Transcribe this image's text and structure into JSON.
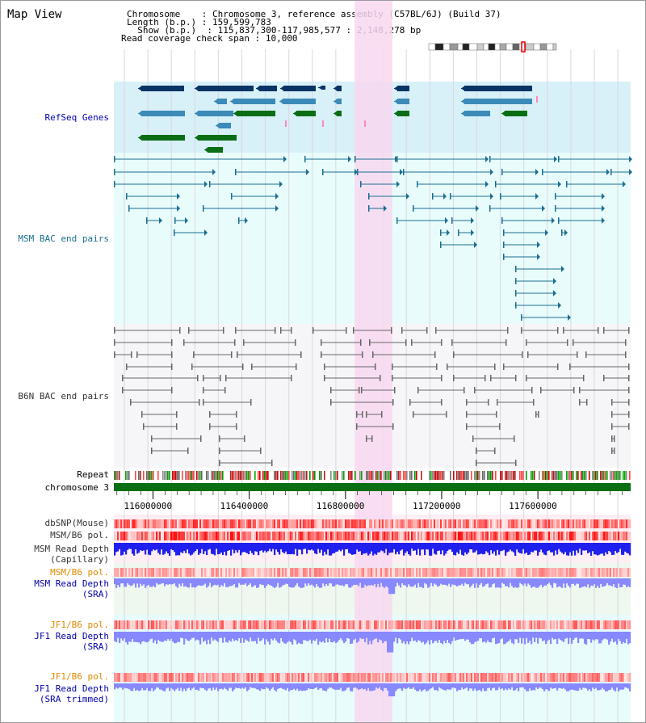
{
  "title": "Map View",
  "header": {
    "chromosome_key": "Chromosome",
    "chromosome_val": ": Chromosome 3, reference assembly (C57BL/6J) (Build 37)",
    "length_key": "Length (b.p.)",
    "length_val": ": 159,599,783",
    "show_key": "  Show (b.p.)",
    "show_val": ": 115,837,300-117,985,577 : 2,148,278 bp",
    "coverage_key": "Read coverage check span",
    "coverage_val": ": 10,000"
  },
  "tracks": {
    "refseq": "RefSeq Genes",
    "msm_bac": "MSM BAC end pairs",
    "b6n_bac": "B6N BAC end pairs",
    "repeat": "Repeat",
    "chromosome": "chromosome 3",
    "dbsnp": "dbSNP(Mouse)",
    "msm_b6_pol": "MSM/B6 pol.",
    "msm_depth_cap_1": "MSM Read Depth",
    "msm_depth_cap_2": "(Capillary)",
    "msm_b6_pol_sra": "MSM/B6 pol.",
    "msm_depth_sra_1": "MSM Read Depth",
    "msm_depth_sra_2": "(SRA)",
    "jf1_b6_pol": "JF1/B6 pol.",
    "jf1_depth_sra_1": "JF1 Read Depth",
    "jf1_depth_sra_2": "(SRA)",
    "jf1_b6_pol_trim": "JF1/B6 pol.",
    "jf1_depth_trim_1": "JF1 Read Depth",
    "jf1_depth_trim_2": "(SRA trimmed)"
  },
  "axis": {
    "ticks": [
      116000000,
      116400000,
      116800000,
      117200000,
      117600000
    ],
    "tick_labels": [
      "116000000",
      "116400000",
      "116800000",
      "117200000",
      "117600000"
    ],
    "range": [
      115837300,
      117985577
    ]
  },
  "highlight_range": [
    116838000,
    116995000
  ],
  "colors": {
    "refseq_bg": "#d8f0f8",
    "msm_bg": "#e8fcfc",
    "b6n_bg": "#f6f6f8",
    "highlight": "#f8d8f0",
    "refseq_dark": "#0a3366",
    "refseq_mid": "#3b8ab8",
    "refseq_green": "#0a6e14",
    "msm_line": "#1a6e90",
    "b6n_line": "#666666",
    "chrom_green": "#0a6e14",
    "depth_blue": "#2020ee",
    "depth_lblue": "#8888ff",
    "label_blue": "#0000aa",
    "label_orange": "#e08800",
    "label_gray": "#333333"
  }
}
